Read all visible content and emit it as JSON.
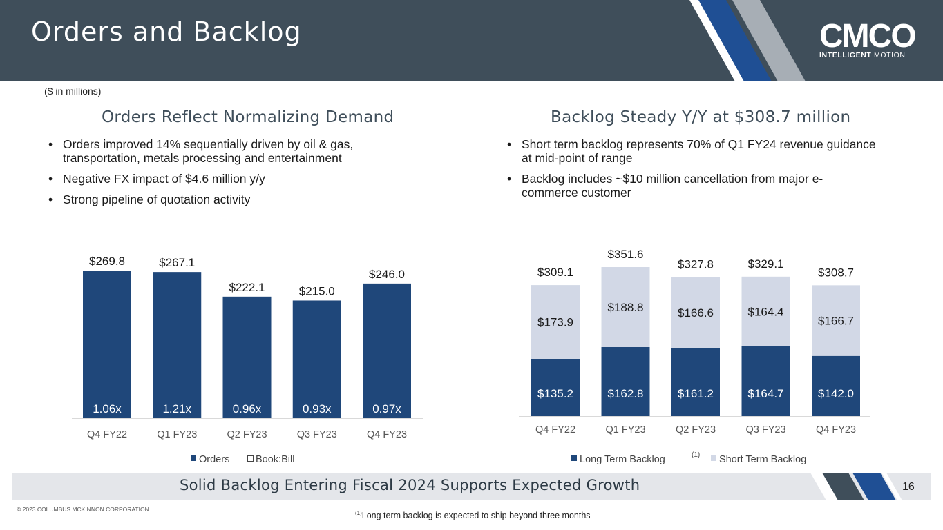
{
  "header": {
    "title": "Orders and Backlog"
  },
  "logo": {
    "wordmark": "CMCO",
    "sub_bold": "INTELLIGENT",
    "sub_light": "MOTION"
  },
  "units_note": "($ in millions)",
  "left": {
    "title": "Orders Reflect Normalizing Demand",
    "bullets": [
      "Orders improved 14% sequentially driven by oil & gas, transportation, metals processing and entertainment",
      "Negative FX impact of $4.6 million y/y",
      "Strong pipeline of quotation activity"
    ]
  },
  "right": {
    "title": "Backlog Steady Y/Y at $308.7 million",
    "bullets": [
      "Short term backlog represents 70% of Q1 FY24 revenue guidance at mid-point of range",
      "Backlog includes ~$10 million cancellation from major e-commerce customer"
    ]
  },
  "footer": {
    "headline": "Solid Backlog Entering Fiscal 2024 Supports Expected Growth",
    "page": "16"
  },
  "copyright": "© 2023 COLUMBUS MCKINNON CORPORATION",
  "footnote": {
    "marker": "(1)",
    "text": "Long term backlog is expected to ship beyond three months"
  },
  "colors": {
    "navy": "#1f477a",
    "light": "#d2d8e6",
    "header": "#3f4e5a",
    "stripe_blue": "#1f4f94",
    "stripe_gray": "#a7aeb5"
  },
  "chart_data": [
    {
      "type": "bar",
      "categories": [
        "Q4 FY22",
        "Q1 FY23",
        "Q2 FY23",
        "Q3 FY23",
        "Q4 FY23"
      ],
      "series": [
        {
          "name": "Orders",
          "values": [
            269.8,
            267.1,
            222.1,
            215.0,
            246.0
          ],
          "labels": [
            "$269.8",
            "$267.1",
            "$222.1",
            "$215.0",
            "$246.0"
          ]
        },
        {
          "name": "Book:Bill",
          "values": [
            1.06,
            1.21,
            0.96,
            0.93,
            0.97
          ],
          "labels": [
            "1.06x",
            "1.21x",
            "0.96x",
            "0.93x",
            "0.97x"
          ]
        }
      ],
      "ylim": [
        0,
        269.8
      ],
      "legend": "bottom"
    },
    {
      "type": "bar",
      "stacked": true,
      "categories": [
        "Q4 FY22",
        "Q1 FY23",
        "Q2 FY23",
        "Q3 FY23",
        "Q4 FY23"
      ],
      "series": [
        {
          "name": "Long Term Backlog",
          "legend_marker": "(1)",
          "values": [
            135.2,
            162.8,
            161.2,
            164.7,
            142.0
          ],
          "labels": [
            "$135.2",
            "$162.8",
            "$161.2",
            "$164.7",
            "$142.0"
          ]
        },
        {
          "name": "Short Term Backlog",
          "values": [
            173.9,
            188.8,
            166.6,
            164.4,
            166.7
          ],
          "labels": [
            "$173.9",
            "$188.8",
            "$166.6",
            "$164.4",
            "$166.7"
          ]
        }
      ],
      "totals": [
        309.1,
        351.6,
        327.8,
        329.1,
        308.7
      ],
      "total_labels": [
        "$309.1",
        "$351.6",
        "$327.8",
        "$329.1",
        "$308.7"
      ],
      "ylim": [
        0,
        351.6
      ],
      "legend": "bottom"
    }
  ]
}
